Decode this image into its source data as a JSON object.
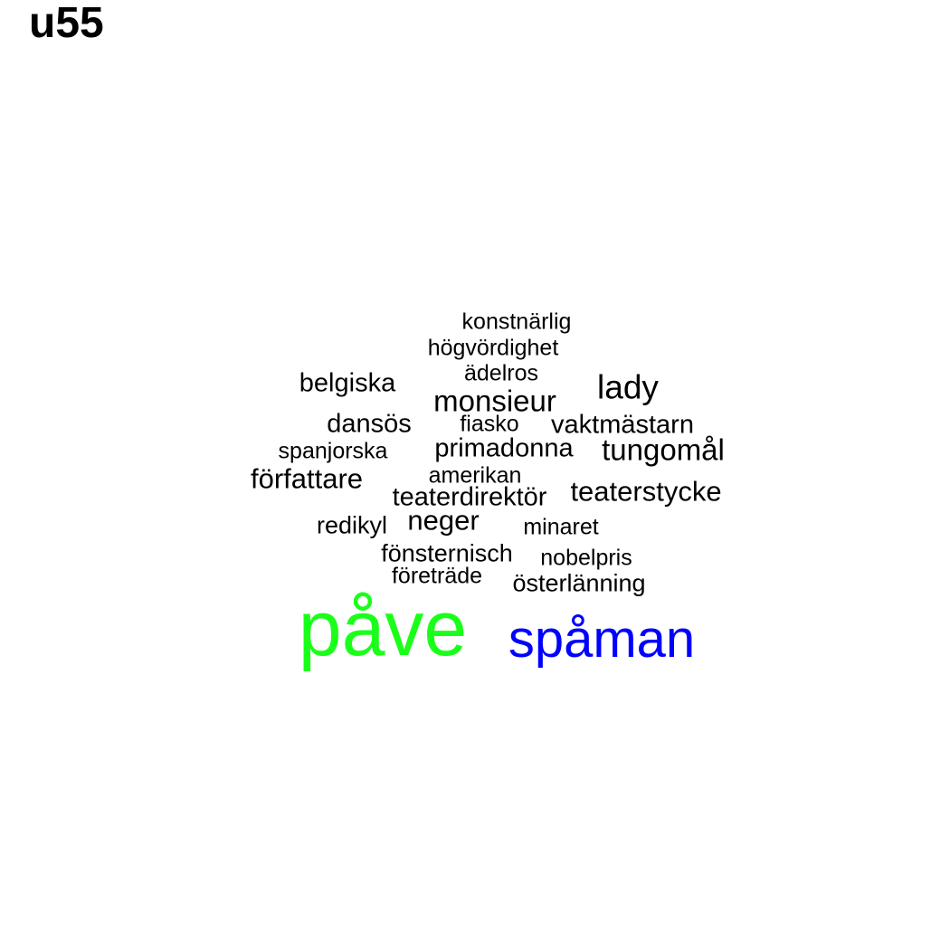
{
  "title": "u55",
  "words": [
    {
      "text": "påve",
      "color": "#1aff1a"
    },
    {
      "text": "spåman",
      "color": "#0000ff"
    },
    {
      "text": "konstnärlig",
      "color": "#000000"
    },
    {
      "text": "högvördighet",
      "color": "#000000"
    },
    {
      "text": "ädelros",
      "color": "#000000"
    },
    {
      "text": "belgiska",
      "color": "#000000"
    },
    {
      "text": "lady",
      "color": "#000000"
    },
    {
      "text": "monsieur",
      "color": "#000000"
    },
    {
      "text": "dansös",
      "color": "#000000"
    },
    {
      "text": "fiasko",
      "color": "#000000"
    },
    {
      "text": "vaktmästarn",
      "color": "#000000"
    },
    {
      "text": "spanjorska",
      "color": "#000000"
    },
    {
      "text": "primadonna",
      "color": "#000000"
    },
    {
      "text": "tungomål",
      "color": "#000000"
    },
    {
      "text": "författare",
      "color": "#000000"
    },
    {
      "text": "amerikan",
      "color": "#000000"
    },
    {
      "text": "teaterdirektör",
      "color": "#000000"
    },
    {
      "text": "teaterstycke",
      "color": "#000000"
    },
    {
      "text": "redikyl",
      "color": "#000000"
    },
    {
      "text": "neger",
      "color": "#000000"
    },
    {
      "text": "minaret",
      "color": "#000000"
    },
    {
      "text": "fönsternisch",
      "color": "#000000"
    },
    {
      "text": "nobelpris",
      "color": "#000000"
    },
    {
      "text": "företräde",
      "color": "#000000"
    },
    {
      "text": "österlänning",
      "color": "#000000"
    }
  ]
}
